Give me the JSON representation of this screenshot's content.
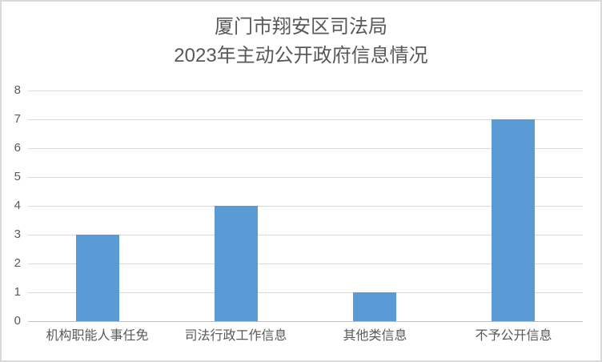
{
  "chart_data": {
    "type": "bar",
    "title": "厦门市翔安区司法局 2023年主动公开政府信息情况",
    "title_lines": [
      "厦门市翔安区司法局",
      "2023年主动公开政府信息情况"
    ],
    "categories": [
      "机构职能人事任免",
      "司法行政工作信息",
      "其他类信息",
      "不予公开信息"
    ],
    "values": [
      3,
      4,
      1,
      7
    ],
    "xlabel": "",
    "ylabel": "",
    "ylim": [
      0,
      8
    ],
    "ytick_step": 1,
    "yticks": [
      0,
      1,
      2,
      3,
      4,
      5,
      6,
      7,
      8
    ],
    "grid": true,
    "legend_position": "none",
    "colors": {
      "bar": "#5b9bd5",
      "gridline": "#d9d9d9",
      "axis_line": "#bfbfbf",
      "text": "#595959",
      "background": "#ffffff",
      "border": "#d9d9d9"
    }
  }
}
